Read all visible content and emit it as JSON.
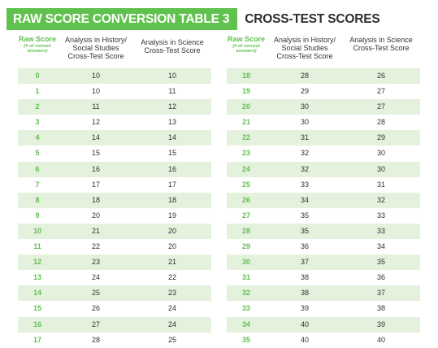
{
  "header": {
    "title": "RAW SCORE CONVERSION TABLE 3",
    "subtitle": "CROSS-TEST SCORES"
  },
  "columns": {
    "raw": "Raw Score",
    "raw_note": "(# of correct answers)",
    "history": "Analysis in History/\nSocial Studies\nCross-Test Score",
    "science": "Analysis in Science\nCross-Test Score"
  },
  "left_rows": [
    {
      "raw": "0",
      "history": "10",
      "science": "10"
    },
    {
      "raw": "1",
      "history": "10",
      "science": "11"
    },
    {
      "raw": "2",
      "history": "11",
      "science": "12"
    },
    {
      "raw": "3",
      "history": "12",
      "science": "13"
    },
    {
      "raw": "4",
      "history": "14",
      "science": "14"
    },
    {
      "raw": "5",
      "history": "15",
      "science": "15"
    },
    {
      "raw": "6",
      "history": "16",
      "science": "16"
    },
    {
      "raw": "7",
      "history": "17",
      "science": "17"
    },
    {
      "raw": "8",
      "history": "18",
      "science": "18"
    },
    {
      "raw": "9",
      "history": "20",
      "science": "19"
    },
    {
      "raw": "10",
      "history": "21",
      "science": "20"
    },
    {
      "raw": "11",
      "history": "22",
      "science": "20"
    },
    {
      "raw": "12",
      "history": "23",
      "science": "21"
    },
    {
      "raw": "13",
      "history": "24",
      "science": "22"
    },
    {
      "raw": "14",
      "history": "25",
      "science": "23"
    },
    {
      "raw": "15",
      "history": "26",
      "science": "24"
    },
    {
      "raw": "16",
      "history": "27",
      "science": "24"
    },
    {
      "raw": "17",
      "history": "28",
      "science": "25"
    }
  ],
  "right_rows": [
    {
      "raw": "18",
      "history": "28",
      "science": "26"
    },
    {
      "raw": "19",
      "history": "29",
      "science": "27"
    },
    {
      "raw": "20",
      "history": "30",
      "science": "27"
    },
    {
      "raw": "21",
      "history": "30",
      "science": "28"
    },
    {
      "raw": "22",
      "history": "31",
      "science": "29"
    },
    {
      "raw": "23",
      "history": "32",
      "science": "30"
    },
    {
      "raw": "24",
      "history": "32",
      "science": "30"
    },
    {
      "raw": "25",
      "history": "33",
      "science": "31"
    },
    {
      "raw": "26",
      "history": "34",
      "science": "32"
    },
    {
      "raw": "27",
      "history": "35",
      "science": "33"
    },
    {
      "raw": "28",
      "history": "35",
      "science": "33"
    },
    {
      "raw": "29",
      "history": "36",
      "science": "34"
    },
    {
      "raw": "30",
      "history": "37",
      "science": "35"
    },
    {
      "raw": "31",
      "history": "38",
      "science": "36"
    },
    {
      "raw": "32",
      "history": "38",
      "science": "37"
    },
    {
      "raw": "33",
      "history": "39",
      "science": "38"
    },
    {
      "raw": "34",
      "history": "40",
      "science": "39"
    },
    {
      "raw": "35",
      "history": "40",
      "science": "40"
    }
  ],
  "colors": {
    "accent_green": "#61c14f",
    "row_shade": "#e3f1dd",
    "text": "#333333"
  }
}
